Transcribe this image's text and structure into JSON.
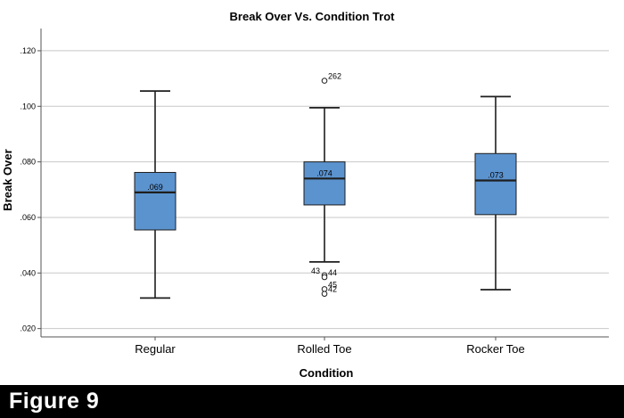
{
  "colors": {
    "box_fill": "#5b93cf",
    "box_stroke": "#1e1e1e",
    "grid": "#c8c8c8",
    "axis": "#555555",
    "banner_bg": "#000000",
    "banner_text": "#ffffff"
  },
  "chart_data": {
    "type": "boxplot",
    "title": "Break Over Vs. Condition Trot",
    "xlabel": "Condition",
    "ylabel": "Break Over",
    "ylim": [
      0.017,
      0.128
    ],
    "yticks": [
      0.02,
      0.04,
      0.06,
      0.08,
      0.1,
      0.12
    ],
    "ytick_labels": [
      ".020",
      ".040",
      ".060",
      ".080",
      ".100",
      ".120"
    ],
    "grid": true,
    "categories": [
      "Regular",
      "Rolled Toe",
      "Rocker Toe"
    ],
    "boxes": [
      {
        "category": "Regular",
        "whisker_low": 0.031,
        "q1": 0.0555,
        "median": 0.069,
        "q3": 0.0762,
        "whisker_high": 0.1055,
        "median_label": ".069",
        "outliers": []
      },
      {
        "category": "Rolled Toe",
        "whisker_low": 0.044,
        "q1": 0.0645,
        "median": 0.074,
        "q3": 0.08,
        "whisker_high": 0.0995,
        "median_label": ".074",
        "outliers": [
          {
            "value": 0.1092,
            "label": "262",
            "side": "right"
          },
          {
            "value": 0.0392,
            "label": "43",
            "side": "left"
          },
          {
            "value": 0.0385,
            "label": "44",
            "side": "right"
          },
          {
            "value": 0.0342,
            "label": "45",
            "side": "right"
          },
          {
            "value": 0.0325,
            "label": "42",
            "side": "right"
          }
        ]
      },
      {
        "category": "Rocker Toe",
        "whisker_low": 0.034,
        "q1": 0.061,
        "median": 0.0733,
        "q3": 0.083,
        "whisker_high": 0.1035,
        "median_label": ".073",
        "outliers": []
      }
    ]
  },
  "banner": {
    "label": "Figure 9"
  }
}
